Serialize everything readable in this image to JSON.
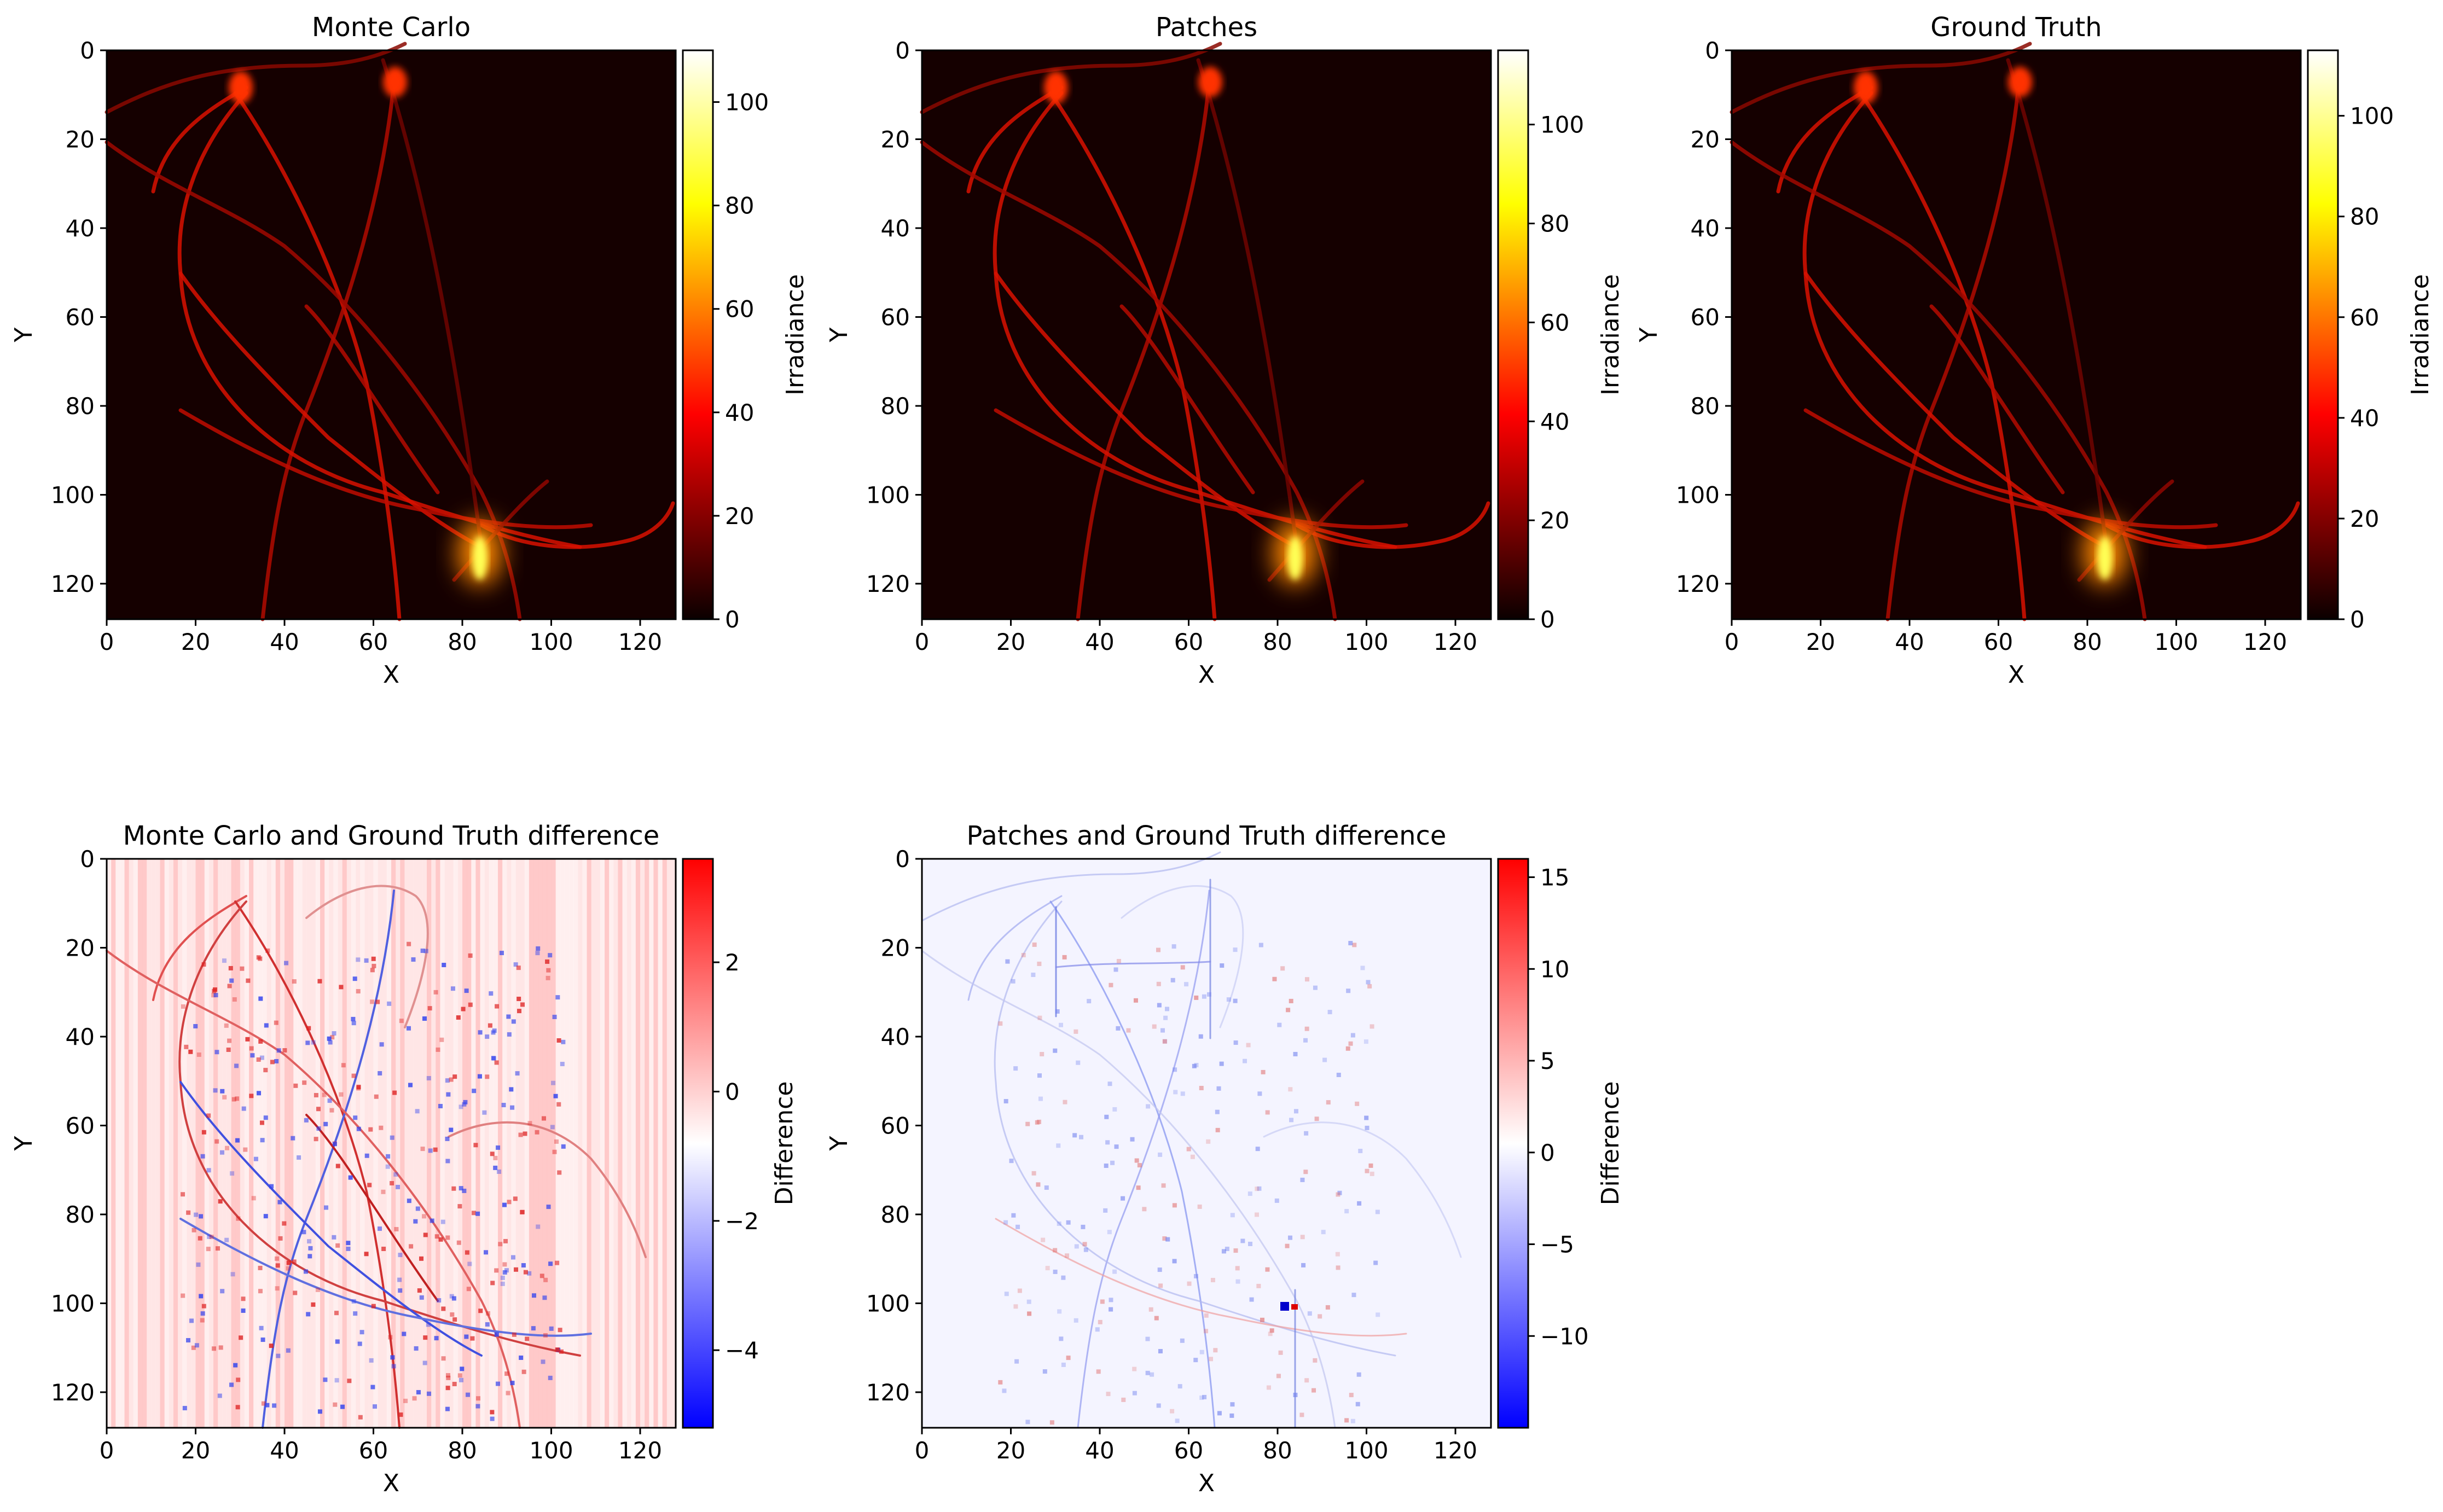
{
  "chart_data": [
    {
      "type": "heatmap",
      "title": "Monte Carlo",
      "xlabel": "X",
      "ylabel": "Y",
      "x_ticks": [
        "0",
        "20",
        "40",
        "60",
        "80",
        "100",
        "120"
      ],
      "y_ticks": [
        "0",
        "20",
        "40",
        "60",
        "80",
        "100",
        "120"
      ],
      "xlim": [
        0,
        128
      ],
      "ylim": [
        128,
        0
      ],
      "grid": false,
      "colormap": "hot",
      "colorbar": {
        "label": "Irradiance",
        "ticks": [
          "0",
          "20",
          "40",
          "60",
          "80",
          "100"
        ],
        "range": [
          0,
          110
        ]
      }
    },
    {
      "type": "heatmap",
      "title": "Patches",
      "xlabel": "X",
      "ylabel": "Y",
      "x_ticks": [
        "0",
        "20",
        "40",
        "60",
        "80",
        "100",
        "120"
      ],
      "y_ticks": [
        "0",
        "20",
        "40",
        "60",
        "80",
        "100",
        "120"
      ],
      "xlim": [
        0,
        128
      ],
      "ylim": [
        128,
        0
      ],
      "grid": false,
      "colormap": "hot",
      "colorbar": {
        "label": "Irradiance",
        "ticks": [
          "0",
          "20",
          "40",
          "60",
          "80",
          "100"
        ],
        "range": [
          0,
          115
        ]
      }
    },
    {
      "type": "heatmap",
      "title": "Ground Truth",
      "xlabel": "X",
      "ylabel": "Y",
      "x_ticks": [
        "0",
        "20",
        "40",
        "60",
        "80",
        "100",
        "120"
      ],
      "y_ticks": [
        "0",
        "20",
        "40",
        "60",
        "80",
        "100",
        "120"
      ],
      "xlim": [
        0,
        128
      ],
      "ylim": [
        128,
        0
      ],
      "grid": false,
      "colormap": "hot",
      "colorbar": {
        "label": "Irradiance",
        "ticks": [
          "0",
          "20",
          "40",
          "60",
          "80",
          "100"
        ],
        "range": [
          0,
          113
        ]
      }
    },
    {
      "type": "heatmap",
      "title": "Monte Carlo and Ground Truth difference",
      "xlabel": "X",
      "ylabel": "Y",
      "x_ticks": [
        "0",
        "20",
        "40",
        "60",
        "80",
        "100",
        "120"
      ],
      "y_ticks": [
        "0",
        "20",
        "40",
        "60",
        "80",
        "100",
        "120"
      ],
      "xlim": [
        0,
        128
      ],
      "ylim": [
        128,
        0
      ],
      "grid": false,
      "colormap": "bwr",
      "colorbar": {
        "label": "Difference",
        "ticks": [
          "−4",
          "−2",
          "0",
          "2"
        ],
        "range": [
          -5.2,
          3.6
        ]
      }
    },
    {
      "type": "heatmap",
      "title": "Patches and Ground Truth difference",
      "xlabel": "X",
      "ylabel": "Y",
      "x_ticks": [
        "0",
        "20",
        "40",
        "60",
        "80",
        "100",
        "120"
      ],
      "y_ticks": [
        "0",
        "20",
        "40",
        "60",
        "80",
        "100",
        "120"
      ],
      "xlim": [
        0,
        128
      ],
      "ylim": [
        128,
        0
      ],
      "grid": false,
      "colormap": "bwr",
      "colorbar": {
        "label": "Difference",
        "ticks": [
          "−10",
          "−5",
          "0",
          "5",
          "10",
          "15"
        ],
        "range": [
          -15,
          16
        ]
      }
    }
  ]
}
